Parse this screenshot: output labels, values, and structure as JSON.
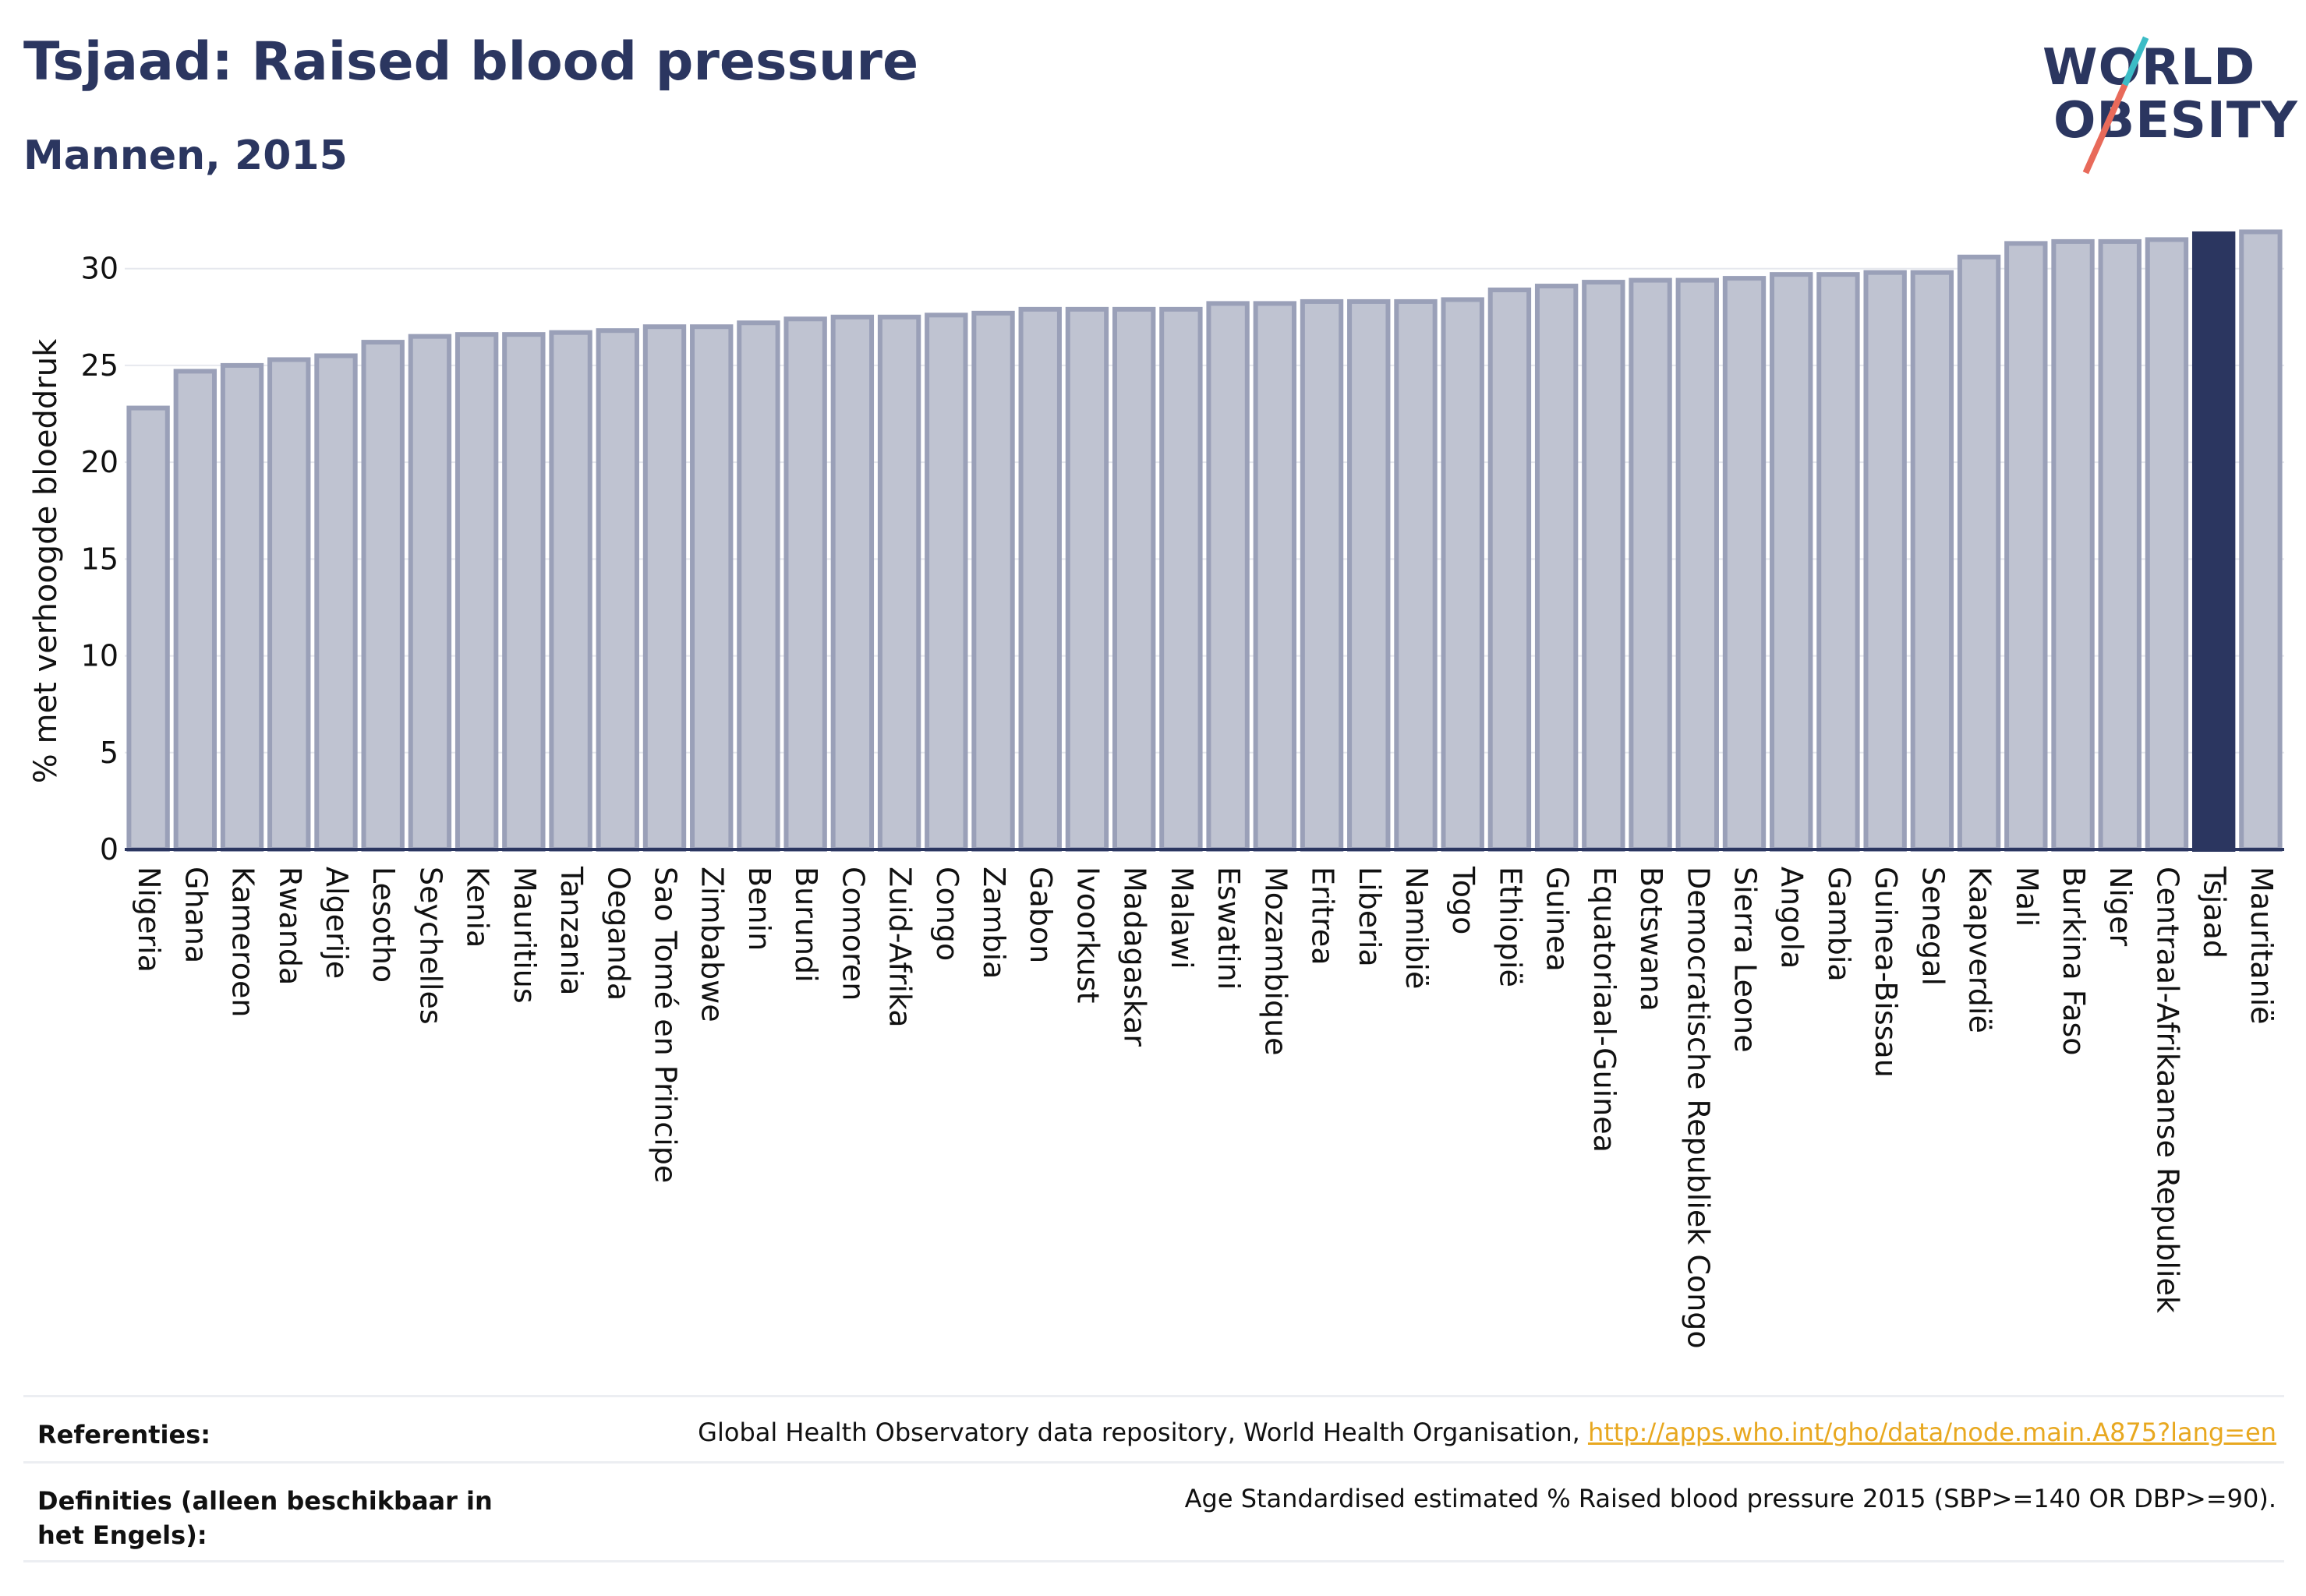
{
  "header": {
    "title": "Tsjaad: Raised blood pressure",
    "subtitle": "Mannen, 2015"
  },
  "logo": {
    "line1": "WORLD",
    "line2": "OBESITY"
  },
  "colors": {
    "highlight": "#2b3660",
    "bar_fill": "#bfc3d1",
    "bar_edge": "#9aa0b8",
    "grid": "#e6e8ee",
    "accent_link": "#e8a820"
  },
  "chart_data": {
    "type": "bar",
    "title": "Tsjaad: Raised blood pressure",
    "subtitle": "Mannen, 2015",
    "ylabel": "% met verhoogde bloeddruk",
    "xlabel": "",
    "ylim": [
      0,
      32
    ],
    "yticks": [
      0,
      5,
      10,
      15,
      20,
      25,
      30
    ],
    "grid": true,
    "highlight": "Tsjaad",
    "categories": [
      "Nigeria",
      "Ghana",
      "Kameroen",
      "Rwanda",
      "Algerije",
      "Lesotho",
      "Seychelles",
      "Kenia",
      "Mauritius",
      "Tanzania",
      "Oeganda",
      "Sao Tomé en Principe",
      "Zimbabwe",
      "Benin",
      "Burundi",
      "Comoren",
      "Zuid-Afrika",
      "Congo",
      "Zambia",
      "Gabon",
      "Ivoorkust",
      "Madagaskar",
      "Malawi",
      "Eswatini",
      "Mozambique",
      "Eritrea",
      "Liberia",
      "Namibië",
      "Togo",
      "Ethiopië",
      "Guinea",
      "Equatoriaal-Guinea",
      "Botswana",
      "Democratische Republiek Congo",
      "Sierra Leone",
      "Angola",
      "Gambia",
      "Guinea-Bissau",
      "Senegal",
      "Kaapverdië",
      "Mali",
      "Burkina Faso",
      "Niger",
      "Centraal-Afrikaanse Republiek",
      "Tsjaad",
      "Mauritanië"
    ],
    "values": [
      22.8,
      24.7,
      25.0,
      25.3,
      25.5,
      26.2,
      26.5,
      26.6,
      26.6,
      26.7,
      26.8,
      27.0,
      27.0,
      27.2,
      27.4,
      27.5,
      27.5,
      27.6,
      27.7,
      27.9,
      27.9,
      27.9,
      27.9,
      28.2,
      28.2,
      28.3,
      28.3,
      28.3,
      28.4,
      28.9,
      29.1,
      29.3,
      29.4,
      29.4,
      29.5,
      29.7,
      29.7,
      29.8,
      29.8,
      30.6,
      31.3,
      31.4,
      31.4,
      31.5,
      31.8,
      31.9
    ]
  },
  "references": {
    "ref_label": "Referenties:",
    "ref_text": "Global Health Observatory data repository, World Health Organisation, ",
    "ref_link": "http://apps.who.int/gho/data/node.main.A875?lang=en",
    "def_label": "Definities (alleen beschikbaar in het Engels):",
    "def_text": "Age Standardised estimated % Raised blood pressure 2015 (SBP>=140 OR DBP>=90)."
  }
}
